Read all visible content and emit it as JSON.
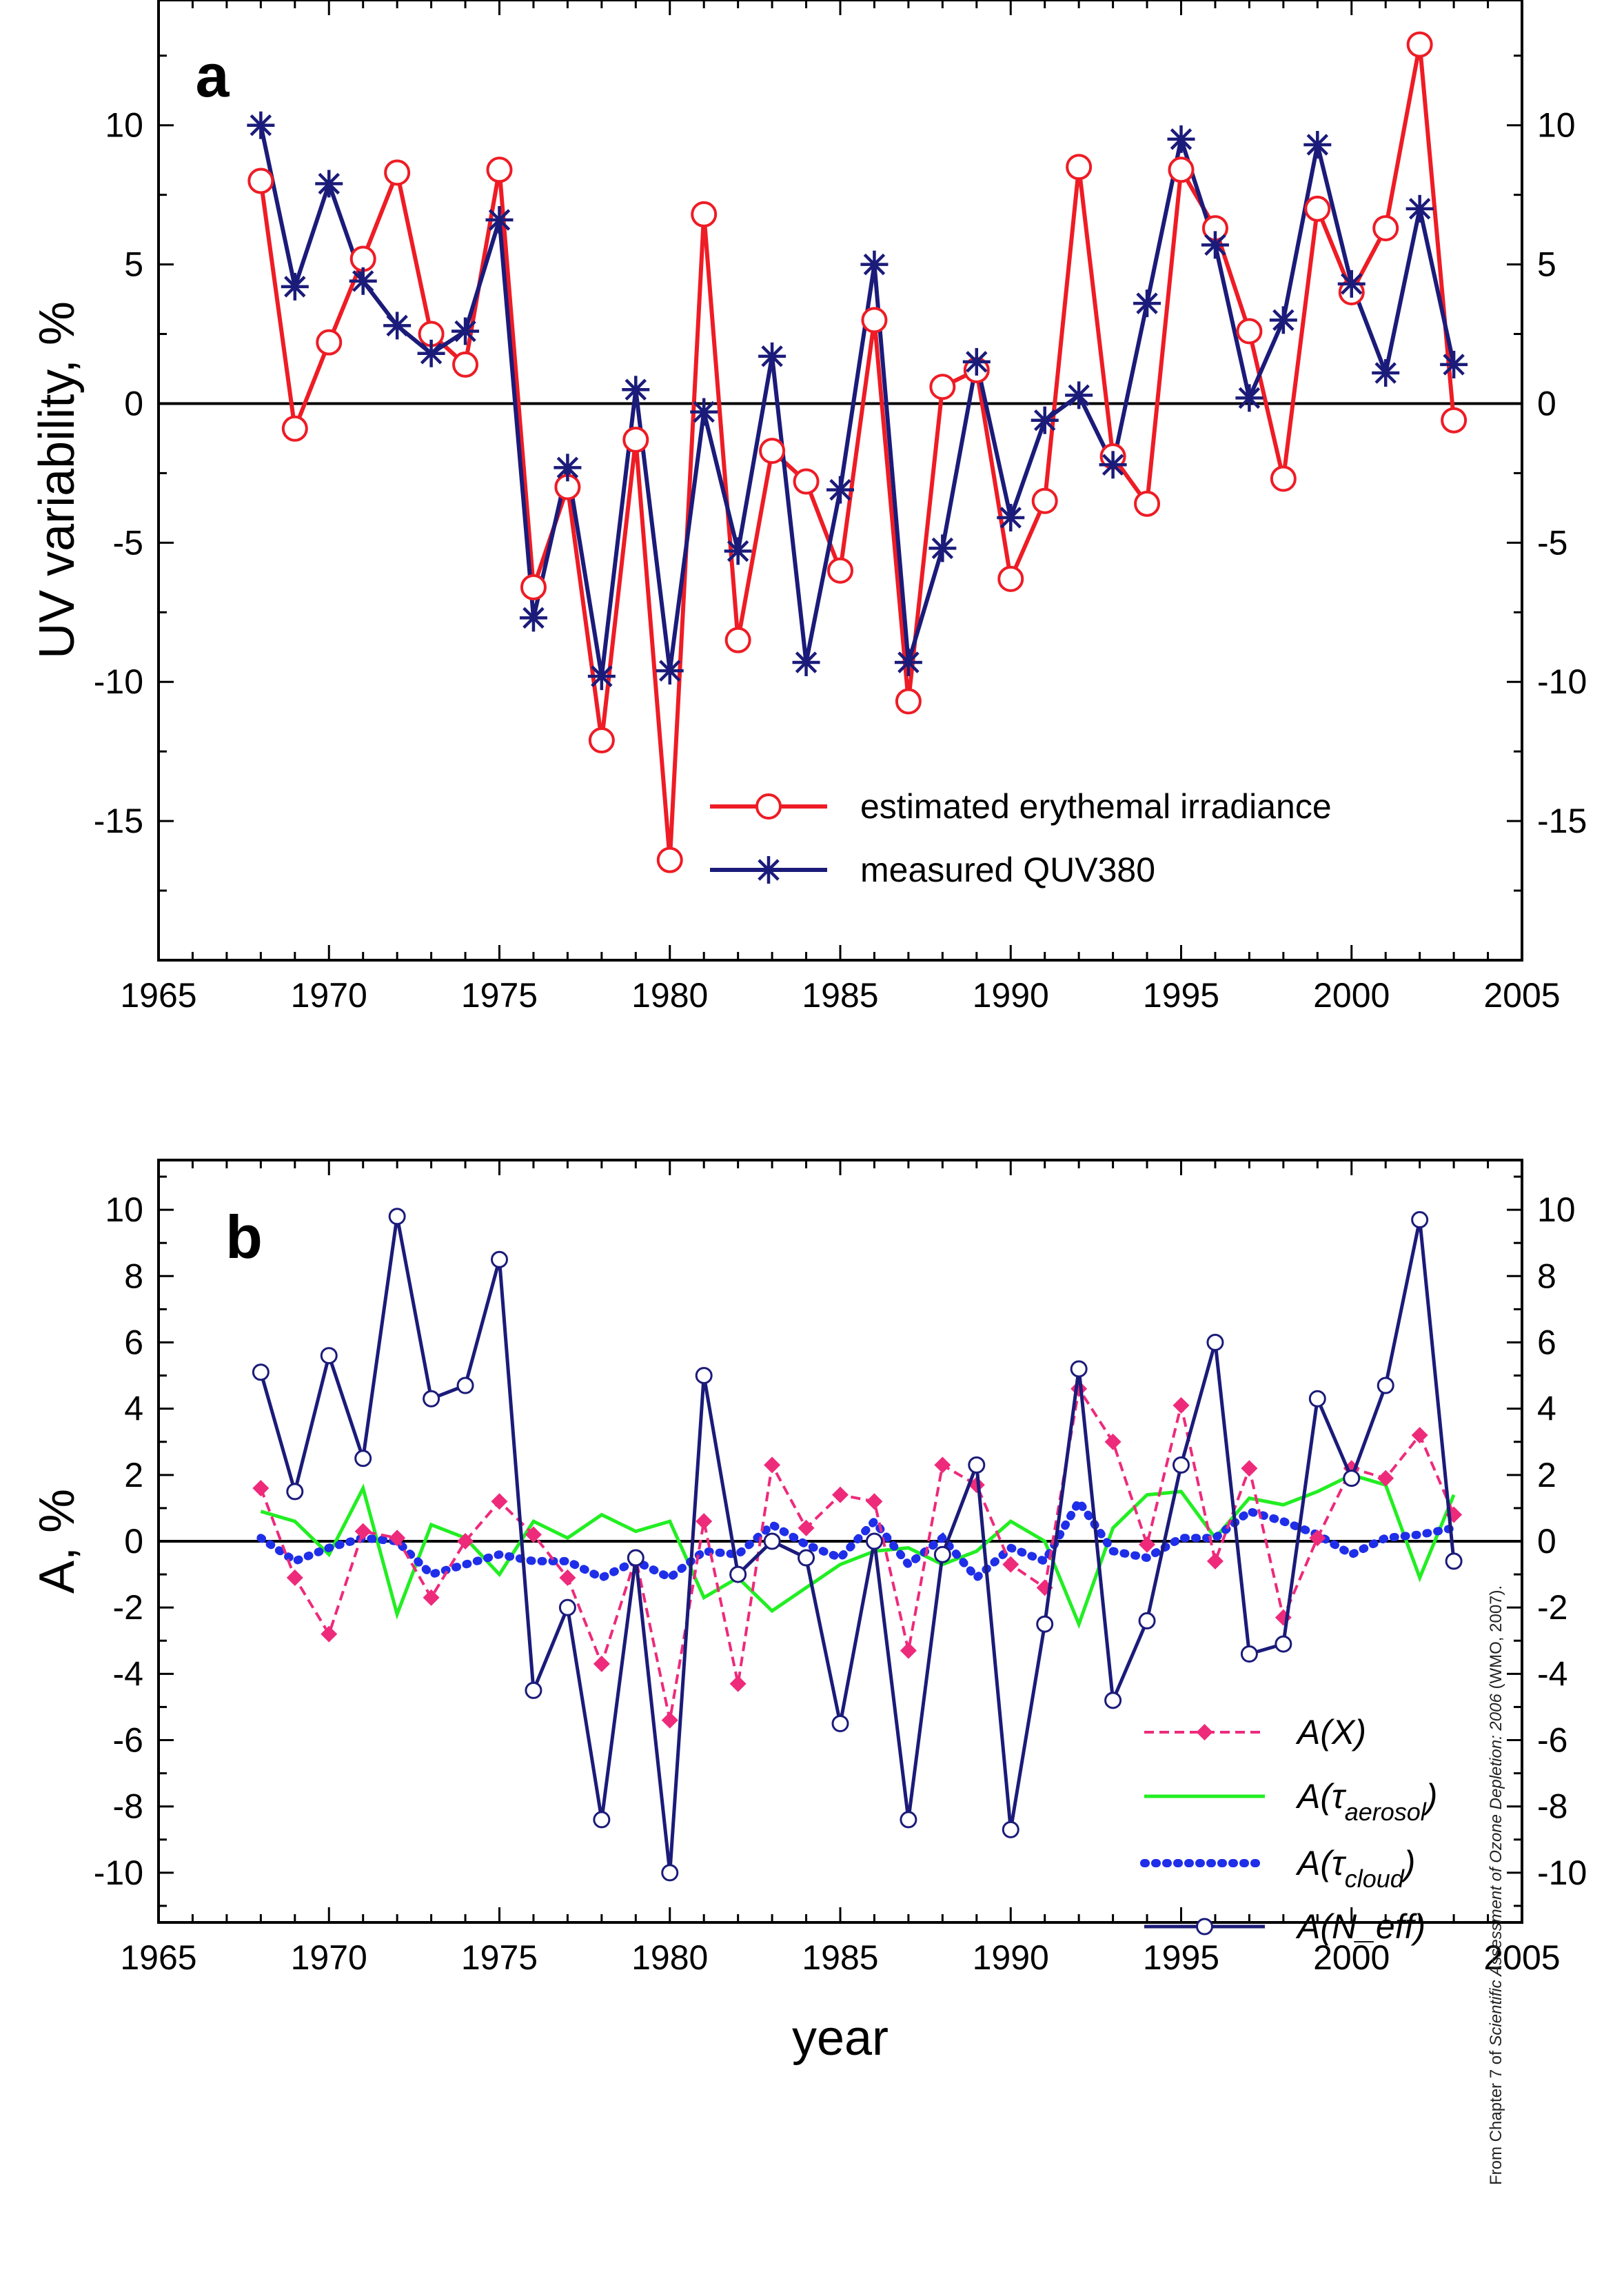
{
  "chart_data": [
    {
      "panel": "a",
      "type": "line",
      "ylabel": "UV variability, %",
      "xlim": [
        1965,
        2005
      ],
      "ylim": [
        -20,
        14.5
      ],
      "x_ticks": [
        "1965",
        "1970",
        "1975",
        "1980",
        "1985",
        "1990",
        "1995",
        "2000",
        "2005"
      ],
      "y_ticks": [
        "10",
        "5",
        "0",
        "-5",
        "-10",
        "-15"
      ],
      "x": [
        1968,
        1969,
        1970,
        1971,
        1972,
        1973,
        1974,
        1975,
        1976,
        1977,
        1978,
        1979,
        1980,
        1981,
        1982,
        1983,
        1984,
        1985,
        1986,
        1987,
        1988,
        1989,
        1990,
        1991,
        1992,
        1993,
        1994,
        1995,
        1996,
        1997,
        1998,
        1999,
        2000,
        2001,
        2002,
        2003
      ],
      "series": [
        {
          "name": "estimated erythemal irradiance",
          "color": "#ee1c25",
          "marker": "open-circle",
          "values": [
            8.0,
            -0.9,
            2.2,
            5.2,
            8.3,
            2.5,
            1.4,
            8.4,
            -6.6,
            -3.0,
            -12.1,
            -1.3,
            -16.4,
            6.8,
            -8.5,
            -1.7,
            -2.8,
            -6.0,
            3.0,
            -10.7,
            0.6,
            1.2,
            -6.3,
            -3.5,
            8.5,
            -1.9,
            -3.6,
            8.4,
            6.3,
            2.6,
            -2.7,
            7.0,
            4.0,
            6.3,
            12.9,
            -0.6
          ]
        },
        {
          "name": "measured QUV380",
          "color": "#1b1b7a",
          "marker": "asterisk",
          "values": [
            10.0,
            4.2,
            7.9,
            4.4,
            2.8,
            1.8,
            2.6,
            6.6,
            -7.7,
            -2.3,
            -9.8,
            0.5,
            -9.6,
            -0.3,
            -5.3,
            1.7,
            -9.3,
            -3.1,
            5.0,
            -9.3,
            -5.2,
            1.5,
            -4.1,
            -0.6,
            0.3,
            -2.2,
            3.6,
            9.5,
            5.7,
            0.2,
            3.0,
            9.3,
            4.3,
            1.1,
            7.0,
            1.4
          ]
        }
      ]
    },
    {
      "panel": "b",
      "type": "line",
      "xlabel": "year",
      "ylabel": "A, %",
      "xlim": [
        1965,
        2005
      ],
      "ylim": [
        -11.5,
        11.5
      ],
      "x_ticks": [
        "1965",
        "1970",
        "1975",
        "1980",
        "1985",
        "1990",
        "1995",
        "2000",
        "2005"
      ],
      "y_ticks": [
        "10",
        "8",
        "6",
        "4",
        "2",
        "0",
        "-2",
        "-4",
        "-6",
        "-8",
        "-10"
      ],
      "x": [
        1968,
        1969,
        1970,
        1971,
        1972,
        1973,
        1974,
        1975,
        1976,
        1977,
        1978,
        1979,
        1980,
        1981,
        1982,
        1983,
        1984,
        1985,
        1986,
        1987,
        1988,
        1989,
        1990,
        1991,
        1992,
        1993,
        1994,
        1995,
        1996,
        1997,
        1998,
        1999,
        2000,
        2001,
        2002,
        2003
      ],
      "series": [
        {
          "name_main": "A(X)",
          "color": "#ee2a7b",
          "style": "dashed-diamond",
          "values": [
            1.6,
            -1.1,
            -2.8,
            0.3,
            0.1,
            -1.7,
            0.0,
            1.2,
            0.2,
            -1.1,
            -3.7,
            -0.5,
            -5.4,
            0.6,
            -4.3,
            2.3,
            0.4,
            1.4,
            1.2,
            -3.3,
            2.3,
            1.7,
            -0.7,
            -1.4,
            4.6,
            3.0,
            -0.1,
            4.1,
            -0.6,
            2.2,
            -2.3,
            0.1,
            2.2,
            1.9,
            3.2,
            0.8
          ]
        },
        {
          "name_main": "A(τ",
          "name_sub": "aerosol",
          "name_tail": ")",
          "color": "#22ee22",
          "style": "solid",
          "values": [
            0.9,
            0.6,
            -0.4,
            1.6,
            -2.2,
            0.5,
            0.1,
            -1.0,
            0.6,
            0.1,
            0.8,
            0.3,
            0.6,
            -1.7,
            -1.1,
            -2.1,
            -1.4,
            -0.7,
            -0.3,
            -0.2,
            -0.7,
            -0.3,
            0.6,
            0.0,
            -2.5,
            0.4,
            1.4,
            1.5,
            0.1,
            1.3,
            1.1,
            1.5,
            2.0,
            1.7,
            -1.1,
            1.4
          ]
        },
        {
          "name_main": "A(τ",
          "name_sub": "cloud",
          "name_tail": ")",
          "color": "#1f2ee8",
          "style": "dotted",
          "values": [
            0.1,
            -0.6,
            -0.2,
            0.1,
            0.0,
            -1.0,
            -0.7,
            -0.4,
            -0.6,
            -0.6,
            -1.1,
            -0.6,
            -1.1,
            -0.3,
            -0.4,
            0.5,
            -0.1,
            -0.5,
            0.6,
            -0.7,
            0.1,
            -1.1,
            -0.2,
            -0.6,
            1.2,
            -0.3,
            -0.5,
            0.1,
            0.1,
            0.9,
            0.6,
            0.2,
            -0.4,
            0.1,
            0.2,
            0.4
          ]
        },
        {
          "name_main": "A(N_eff)",
          "color": "#1b1b7a",
          "style": "solid-open-circle",
          "values": [
            5.1,
            1.5,
            5.6,
            2.5,
            9.8,
            4.3,
            4.7,
            8.5,
            -4.5,
            -2.0,
            -8.4,
            -0.5,
            -10.0,
            5.0,
            -1.0,
            0.0,
            -0.5,
            -5.5,
            0.0,
            -8.4,
            -0.4,
            2.3,
            -8.7,
            -2.5,
            5.2,
            -4.8,
            -2.4,
            2.3,
            6.0,
            -3.4,
            -3.1,
            4.3,
            1.9,
            4.7,
            9.7,
            -0.6
          ]
        }
      ]
    }
  ],
  "panels": {
    "a": {
      "letter": "a"
    },
    "b": {
      "letter": "b"
    }
  },
  "credit": {
    "prefix": "From Chapter 7 of ",
    "title": "Scientific Assessment of Ozone Depletion: 2006",
    "suffix": " (WMO, 2007)."
  }
}
